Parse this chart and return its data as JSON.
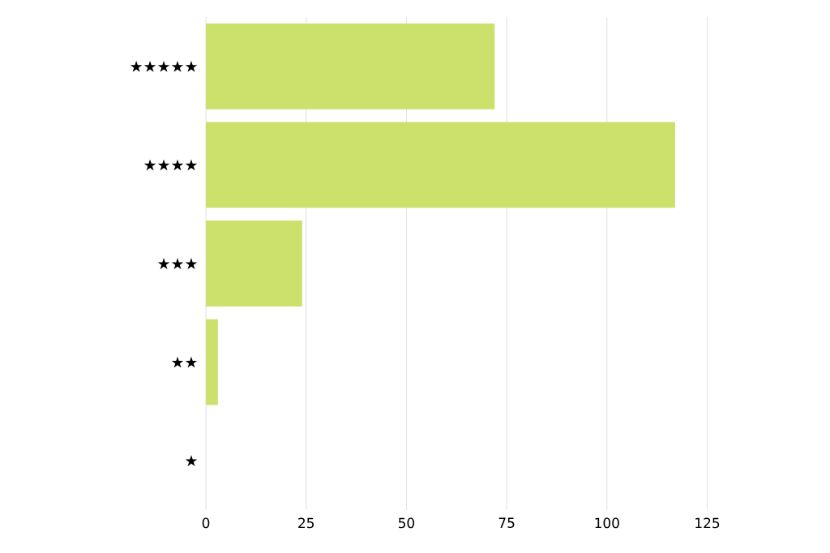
{
  "chart_data": {
    "type": "bar",
    "orientation": "horizontal",
    "categories": [
      "★★★★★",
      "★★★★",
      "★★★",
      "★★",
      "★"
    ],
    "values": [
      72,
      117,
      24,
      3,
      0
    ],
    "color": "#cbe16b",
    "xlim": [
      0,
      125
    ],
    "xticks": [
      0,
      25,
      50,
      75,
      100,
      125
    ],
    "grid": "x"
  }
}
